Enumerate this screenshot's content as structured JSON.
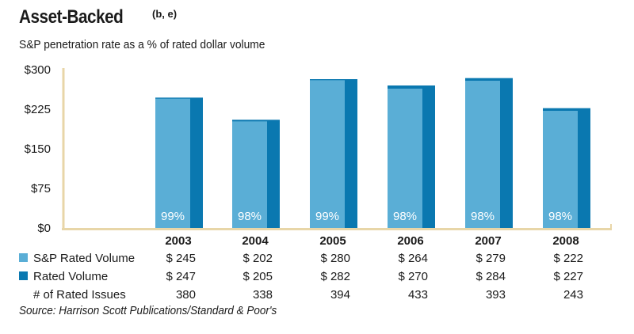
{
  "title": "Asset-Backed",
  "title_superscript": "(b, e)",
  "subtitle": "S&P penetration rate as a % of rated dollar volume",
  "source": "Source: Harrison Scott Publications/Standard & Poor's",
  "colors": {
    "sp_rated_volume": "#5aaed6",
    "rated_volume": "#0a78b0",
    "axis": "#e8d6a8"
  },
  "chart_data": {
    "type": "bar",
    "categories": [
      "2003",
      "2004",
      "2005",
      "2006",
      "2007",
      "2008"
    ],
    "series": [
      {
        "name": "S&P Rated Volume",
        "values": [
          245,
          202,
          280,
          264,
          279,
          222
        ],
        "labels": [
          "$ 245",
          "$ 202",
          "$ 280",
          "$ 264",
          "$ 279",
          "$ 222"
        ]
      },
      {
        "name": "Rated Volume",
        "values": [
          247,
          205,
          282,
          270,
          284,
          227
        ],
        "labels": [
          "$ 247",
          "$ 205",
          "$ 282",
          "$ 270",
          "$ 284",
          "$ 227"
        ]
      }
    ],
    "rated_issues_label": "# of Rated Issues",
    "rated_issues": [
      "380",
      "338",
      "394",
      "433",
      "393",
      "243"
    ],
    "penetration_labels": [
      "99%",
      "98%",
      "99%",
      "98%",
      "98%",
      "98%"
    ],
    "ylim": [
      0,
      300
    ],
    "yticks": [
      0,
      75,
      150,
      225,
      300
    ],
    "ytick_labels": [
      "$0",
      "$75",
      "$150",
      "$225",
      "$300"
    ],
    "grid": false,
    "legend_placement": "bottom-left, table rows"
  }
}
